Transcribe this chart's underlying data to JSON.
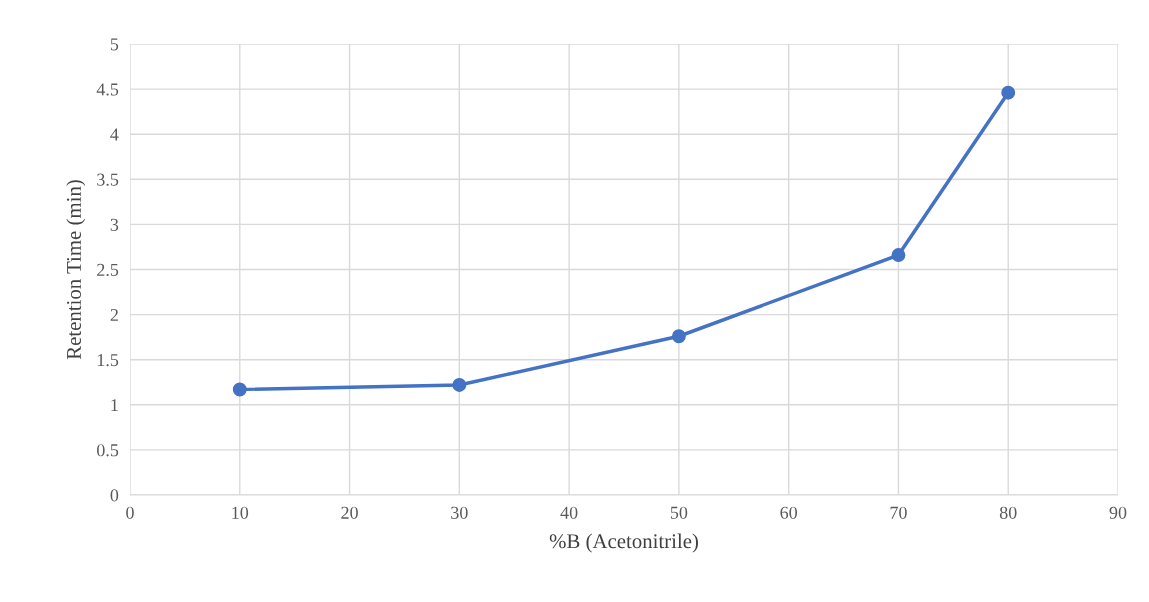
{
  "chart_data": {
    "type": "line",
    "xlabel": "%B (Acetonitrile)",
    "ylabel": "Retention Time (min)",
    "x": [
      10,
      30,
      50,
      70,
      80
    ],
    "series": [
      {
        "color": "#4472c4",
        "values": [
          1.17,
          1.22,
          1.76,
          2.66,
          4.46
        ]
      }
    ],
    "xlim": [
      0,
      90
    ],
    "xticks": [
      0,
      10,
      20,
      30,
      40,
      50,
      60,
      70,
      80,
      90
    ],
    "ylim": [
      0,
      5
    ],
    "yticks": [
      0,
      0.5,
      1,
      1.5,
      2,
      2.5,
      3,
      3.5,
      4,
      4.5,
      5
    ],
    "grid": true,
    "marker": "circle",
    "line_style": "solid",
    "legend": false
  }
}
